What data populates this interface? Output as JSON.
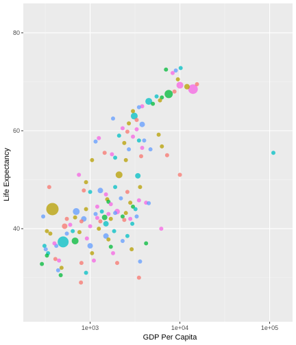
{
  "chart_data": {
    "type": "scatter",
    "title": "",
    "xlabel": "GDP Per Capita",
    "ylabel": "Life Expectancy",
    "x_scale": "log10",
    "xlim": [
      180,
      180000
    ],
    "ylim": [
      21,
      86
    ],
    "x_ticks": [
      1000,
      10000,
      100000
    ],
    "x_tick_labels": [
      "1e+03",
      "1e+04",
      "1e+05"
    ],
    "y_ticks": [
      40,
      60,
      80
    ],
    "y_tick_labels": [
      "40",
      "60",
      "80"
    ],
    "grid": true,
    "legend": "none",
    "point_alpha": 0.75,
    "colors": {
      "red": "#F8766D",
      "olive": "#B79F00",
      "green": "#00BA38",
      "teal": "#00BFC4",
      "blue": "#619CFF",
      "pink": "#F564E3"
    },
    "points": [
      {
        "x": 14000,
        "y": 68.5,
        "size": 7,
        "color": "pink"
      },
      {
        "x": 7500,
        "y": 67.5,
        "size": 6,
        "color": "green"
      },
      {
        "x": 10000,
        "y": 69.3,
        "size": 5,
        "color": "pink"
      },
      {
        "x": 4500,
        "y": 66.0,
        "size": 5,
        "color": "teal"
      },
      {
        "x": 12000,
        "y": 69.0,
        "size": 4,
        "color": "olive"
      },
      {
        "x": 9500,
        "y": 70.5,
        "size": 3,
        "color": "olive"
      },
      {
        "x": 9000,
        "y": 72.3,
        "size": 3,
        "color": "blue"
      },
      {
        "x": 10200,
        "y": 72.8,
        "size": 3,
        "color": "teal"
      },
      {
        "x": 8300,
        "y": 71.8,
        "size": 3,
        "color": "pink"
      },
      {
        "x": 7000,
        "y": 72.5,
        "size": 3,
        "color": "green"
      },
      {
        "x": 15500,
        "y": 69.5,
        "size": 3,
        "color": "red"
      },
      {
        "x": 8700,
        "y": 68.0,
        "size": 3,
        "color": "red"
      },
      {
        "x": 6300,
        "y": 66.8,
        "size": 3,
        "color": "green"
      },
      {
        "x": 6000,
        "y": 66.2,
        "size": 3,
        "color": "olive"
      },
      {
        "x": 5500,
        "y": 67.0,
        "size": 3,
        "color": "teal"
      },
      {
        "x": 5000,
        "y": 65.5,
        "size": 3,
        "color": "green"
      },
      {
        "x": 3800,
        "y": 65.0,
        "size": 3,
        "color": "pink"
      },
      {
        "x": 3500,
        "y": 64.8,
        "size": 3,
        "color": "blue"
      },
      {
        "x": 3000,
        "y": 64.0,
        "size": 3,
        "color": "olive"
      },
      {
        "x": 3100,
        "y": 63.0,
        "size": 5,
        "color": "teal"
      },
      {
        "x": 3300,
        "y": 62.2,
        "size": 3,
        "color": "red"
      },
      {
        "x": 3800,
        "y": 61.3,
        "size": 4,
        "color": "blue"
      },
      {
        "x": 2700,
        "y": 61.5,
        "size": 3,
        "color": "olive"
      },
      {
        "x": 3300,
        "y": 60.3,
        "size": 3,
        "color": "pink"
      },
      {
        "x": 2300,
        "y": 60.5,
        "size": 3,
        "color": "pink"
      },
      {
        "x": 2600,
        "y": 59.8,
        "size": 3,
        "color": "red"
      },
      {
        "x": 3000,
        "y": 58.8,
        "size": 3,
        "color": "pink"
      },
      {
        "x": 2100,
        "y": 59.0,
        "size": 3,
        "color": "teal"
      },
      {
        "x": 2400,
        "y": 57.5,
        "size": 3,
        "color": "olive"
      },
      {
        "x": 2700,
        "y": 56.2,
        "size": 3,
        "color": "blue"
      },
      {
        "x": 3500,
        "y": 58.0,
        "size": 3,
        "color": "teal"
      },
      {
        "x": 4000,
        "y": 58.0,
        "size": 3,
        "color": "blue"
      },
      {
        "x": 3800,
        "y": 56.5,
        "size": 3,
        "color": "pink"
      },
      {
        "x": 3700,
        "y": 54.8,
        "size": 3,
        "color": "red"
      },
      {
        "x": 5800,
        "y": 59.2,
        "size": 3,
        "color": "olive"
      },
      {
        "x": 6300,
        "y": 56.8,
        "size": 3,
        "color": "olive"
      },
      {
        "x": 7200,
        "y": 55.0,
        "size": 3,
        "color": "red"
      },
      {
        "x": 4700,
        "y": 56.2,
        "size": 3,
        "color": "blue"
      },
      {
        "x": 1800,
        "y": 62.5,
        "size": 3,
        "color": "blue"
      },
      {
        "x": 1250,
        "y": 58.5,
        "size": 3,
        "color": "pink"
      },
      {
        "x": 1150,
        "y": 57.8,
        "size": 3,
        "color": "blue"
      },
      {
        "x": 1450,
        "y": 55.5,
        "size": 3,
        "color": "red"
      },
      {
        "x": 1750,
        "y": 55.2,
        "size": 3,
        "color": "pink"
      },
      {
        "x": 1900,
        "y": 54.5,
        "size": 3,
        "color": "teal"
      },
      {
        "x": 2500,
        "y": 54.0,
        "size": 3,
        "color": "olive"
      },
      {
        "x": 2100,
        "y": 51.0,
        "size": 5,
        "color": "olive"
      },
      {
        "x": 3400,
        "y": 50.8,
        "size": 4,
        "color": "teal"
      },
      {
        "x": 3600,
        "y": 48.5,
        "size": 3,
        "color": "olive"
      },
      {
        "x": 1050,
        "y": 54.0,
        "size": 3,
        "color": "olive"
      },
      {
        "x": 750,
        "y": 51.0,
        "size": 3,
        "color": "pink"
      },
      {
        "x": 900,
        "y": 49.5,
        "size": 3,
        "color": "olive"
      },
      {
        "x": 850,
        "y": 47.8,
        "size": 3,
        "color": "red"
      },
      {
        "x": 1000,
        "y": 47.5,
        "size": 3,
        "color": "teal"
      },
      {
        "x": 1300,
        "y": 47.8,
        "size": 4,
        "color": "blue"
      },
      {
        "x": 1500,
        "y": 47.0,
        "size": 3,
        "color": "pink"
      },
      {
        "x": 1550,
        "y": 46.0,
        "size": 3,
        "color": "olive"
      },
      {
        "x": 1600,
        "y": 45.5,
        "size": 3,
        "color": "green"
      },
      {
        "x": 1700,
        "y": 45.0,
        "size": 3,
        "color": "pink"
      },
      {
        "x": 1900,
        "y": 48.5,
        "size": 3,
        "color": "teal"
      },
      {
        "x": 2200,
        "y": 46.2,
        "size": 3,
        "color": "blue"
      },
      {
        "x": 2600,
        "y": 47.5,
        "size": 3,
        "color": "red"
      },
      {
        "x": 2800,
        "y": 45.3,
        "size": 3,
        "color": "olive"
      },
      {
        "x": 3000,
        "y": 44.5,
        "size": 3,
        "color": "green"
      },
      {
        "x": 3500,
        "y": 45.8,
        "size": 3,
        "color": "pink"
      },
      {
        "x": 4200,
        "y": 45.3,
        "size": 3,
        "color": "pink"
      },
      {
        "x": 4500,
        "y": 45.2,
        "size": 3,
        "color": "blue"
      },
      {
        "x": 3200,
        "y": 44.0,
        "size": 3,
        "color": "teal"
      },
      {
        "x": 2000,
        "y": 43.5,
        "size": 4,
        "color": "pink"
      },
      {
        "x": 2500,
        "y": 43.2,
        "size": 3,
        "color": "olive"
      },
      {
        "x": 2800,
        "y": 42.0,
        "size": 3,
        "color": "pink"
      },
      {
        "x": 3300,
        "y": 42.5,
        "size": 3,
        "color": "blue"
      },
      {
        "x": 2300,
        "y": 42.5,
        "size": 3,
        "color": "green"
      },
      {
        "x": 1200,
        "y": 44.5,
        "size": 3,
        "color": "pink"
      },
      {
        "x": 1150,
        "y": 43.0,
        "size": 3,
        "color": "blue"
      },
      {
        "x": 1200,
        "y": 42.2,
        "size": 3,
        "color": "pink"
      },
      {
        "x": 1450,
        "y": 42.3,
        "size": 4,
        "color": "green"
      },
      {
        "x": 1700,
        "y": 42.0,
        "size": 3,
        "color": "olive"
      },
      {
        "x": 1300,
        "y": 41.5,
        "size": 3,
        "color": "red"
      },
      {
        "x": 1500,
        "y": 41.0,
        "size": 4,
        "color": "teal"
      },
      {
        "x": 1250,
        "y": 40.0,
        "size": 3,
        "color": "olive"
      },
      {
        "x": 1000,
        "y": 40.5,
        "size": 3,
        "color": "pink"
      },
      {
        "x": 850,
        "y": 42.0,
        "size": 4,
        "color": "blue"
      },
      {
        "x": 800,
        "y": 41.5,
        "size": 3,
        "color": "red"
      },
      {
        "x": 700,
        "y": 43.5,
        "size": 5,
        "color": "blue"
      },
      {
        "x": 680,
        "y": 42.3,
        "size": 3,
        "color": "olive"
      },
      {
        "x": 550,
        "y": 42.0,
        "size": 3,
        "color": "red"
      },
      {
        "x": 520,
        "y": 40.5,
        "size": 4,
        "color": "red"
      },
      {
        "x": 600,
        "y": 40.8,
        "size": 3,
        "color": "pink"
      },
      {
        "x": 550,
        "y": 39.0,
        "size": 3,
        "color": "blue"
      },
      {
        "x": 680,
        "y": 37.5,
        "size": 5,
        "color": "green"
      },
      {
        "x": 500,
        "y": 37.3,
        "size": 8,
        "color": "teal"
      },
      {
        "x": 420,
        "y": 36.5,
        "size": 3,
        "color": "blue"
      },
      {
        "x": 380,
        "y": 44.0,
        "size": 9,
        "color": "olive"
      },
      {
        "x": 350,
        "y": 48.5,
        "size": 3,
        "color": "red"
      },
      {
        "x": 300,
        "y": 42.5,
        "size": 3,
        "color": "blue"
      },
      {
        "x": 330,
        "y": 39.5,
        "size": 3,
        "color": "olive"
      },
      {
        "x": 360,
        "y": 39.0,
        "size": 3,
        "color": "olive"
      },
      {
        "x": 400,
        "y": 37.0,
        "size": 3,
        "color": "pink"
      },
      {
        "x": 310,
        "y": 36.5,
        "size": 3,
        "color": "teal"
      },
      {
        "x": 320,
        "y": 35.8,
        "size": 3,
        "color": "blue"
      },
      {
        "x": 340,
        "y": 35.0,
        "size": 3,
        "color": "teal"
      },
      {
        "x": 330,
        "y": 34.5,
        "size": 3,
        "color": "green"
      },
      {
        "x": 410,
        "y": 33.8,
        "size": 3,
        "color": "red"
      },
      {
        "x": 450,
        "y": 33.5,
        "size": 3,
        "color": "pink"
      },
      {
        "x": 480,
        "y": 32.0,
        "size": 3,
        "color": "olive"
      },
      {
        "x": 440,
        "y": 31.5,
        "size": 3,
        "color": "blue"
      },
      {
        "x": 470,
        "y": 30.5,
        "size": 3,
        "color": "green"
      },
      {
        "x": 290,
        "y": 32.8,
        "size": 3,
        "color": "green"
      },
      {
        "x": 800,
        "y": 33.0,
        "size": 3,
        "color": "red"
      },
      {
        "x": 790,
        "y": 29.0,
        "size": 3,
        "color": "red"
      },
      {
        "x": 900,
        "y": 31.0,
        "size": 3,
        "color": "teal"
      },
      {
        "x": 920,
        "y": 38.0,
        "size": 3,
        "color": "pink"
      },
      {
        "x": 1000,
        "y": 36.5,
        "size": 4,
        "color": "blue"
      },
      {
        "x": 1050,
        "y": 35.0,
        "size": 3,
        "color": "olive"
      },
      {
        "x": 1100,
        "y": 33.5,
        "size": 3,
        "color": "pink"
      },
      {
        "x": 1500,
        "y": 38.5,
        "size": 4,
        "color": "blue"
      },
      {
        "x": 1600,
        "y": 37.8,
        "size": 3,
        "color": "olive"
      },
      {
        "x": 1700,
        "y": 36.3,
        "size": 3,
        "color": "green"
      },
      {
        "x": 1800,
        "y": 35.0,
        "size": 3,
        "color": "pink"
      },
      {
        "x": 2000,
        "y": 33.0,
        "size": 3,
        "color": "red"
      },
      {
        "x": 1850,
        "y": 39.5,
        "size": 3,
        "color": "teal"
      },
      {
        "x": 2300,
        "y": 37.5,
        "size": 3,
        "color": "blue"
      },
      {
        "x": 2600,
        "y": 38.5,
        "size": 3,
        "color": "teal"
      },
      {
        "x": 2900,
        "y": 35.8,
        "size": 3,
        "color": "olive"
      },
      {
        "x": 3500,
        "y": 30.0,
        "size": 3,
        "color": "red"
      },
      {
        "x": 3600,
        "y": 33.3,
        "size": 3,
        "color": "blue"
      },
      {
        "x": 4200,
        "y": 37.0,
        "size": 3,
        "color": "green"
      },
      {
        "x": 6200,
        "y": 40.0,
        "size": 3,
        "color": "pink"
      },
      {
        "x": 10000,
        "y": 51.0,
        "size": 3,
        "color": "red"
      },
      {
        "x": 110000,
        "y": 55.5,
        "size": 3,
        "color": "teal"
      },
      {
        "x": 1600,
        "y": 43.0,
        "size": 3,
        "color": "pink"
      },
      {
        "x": 1900,
        "y": 43.2,
        "size": 3,
        "color": "blue"
      },
      {
        "x": 2400,
        "y": 41.8,
        "size": 3,
        "color": "red"
      },
      {
        "x": 2950,
        "y": 41.0,
        "size": 3,
        "color": "teal"
      },
      {
        "x": 1350,
        "y": 43.5,
        "size": 3,
        "color": "teal"
      },
      {
        "x": 640,
        "y": 39.5,
        "size": 3,
        "color": "teal"
      },
      {
        "x": 760,
        "y": 39.3,
        "size": 3,
        "color": "olive"
      },
      {
        "x": 900,
        "y": 44.0,
        "size": 3,
        "color": "olive"
      }
    ]
  }
}
